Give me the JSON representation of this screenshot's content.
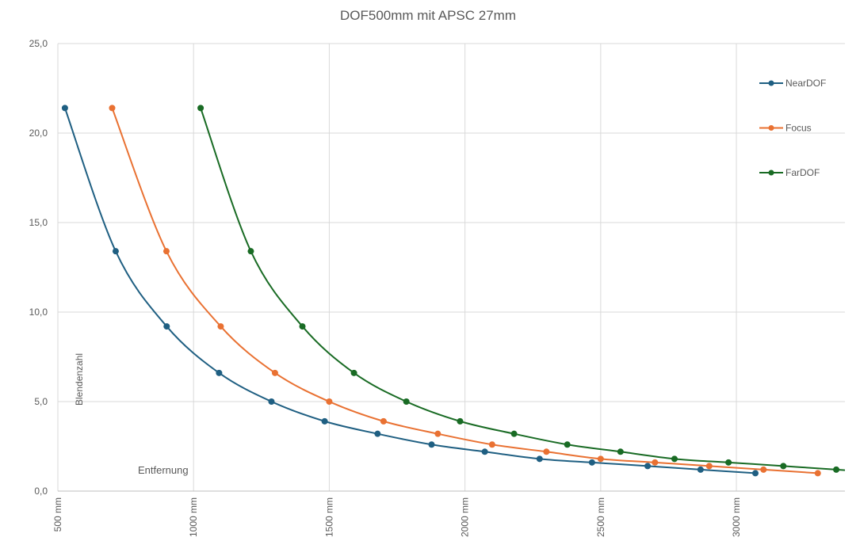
{
  "chart_data": {
    "type": "line",
    "title": "DOF500mm mit APSC 27mm",
    "xlabel": "Entfernung",
    "ylabel": "Blendenzahl",
    "xlim": [
      500,
      3400
    ],
    "ylim": [
      0,
      25
    ],
    "x_ticks": [
      500,
      1000,
      1500,
      2000,
      2500,
      3000
    ],
    "x_tick_labels": [
      "500 mm",
      "1000 mm",
      "1500 mm",
      "2000 mm",
      "2500 mm",
      "3000 mm"
    ],
    "y_ticks": [
      0,
      5,
      10,
      15,
      20,
      25
    ],
    "y_tick_labels": [
      "0,0",
      "5,0",
      "10,0",
      "15,0",
      "20,0",
      "25,0"
    ],
    "grid": "both",
    "legend_position": "right",
    "series": [
      {
        "name": "NearDOF",
        "color": "#1f5f82",
        "x": [
          526,
          713,
          901,
          1094,
          1287,
          1483,
          1678,
          1877,
          2073,
          2275,
          2468,
          2673,
          2868,
          3070
        ],
        "y": [
          21.4,
          13.4,
          9.2,
          6.6,
          5.0,
          3.9,
          3.2,
          2.6,
          2.2,
          1.8,
          1.6,
          1.4,
          1.2,
          1.0
        ]
      },
      {
        "name": "Focus",
        "color": "#e97132",
        "x": [
          700,
          900,
          1100,
          1300,
          1500,
          1700,
          1900,
          2100,
          2300,
          2500,
          2700,
          2900,
          3100,
          3300
        ],
        "y": [
          21.4,
          13.4,
          9.2,
          6.6,
          5.0,
          3.9,
          3.2,
          2.6,
          2.2,
          1.8,
          1.6,
          1.4,
          1.2,
          1.0
        ]
      },
      {
        "name": "FarDOF",
        "color": "#196b24",
        "x": [
          1026,
          1211,
          1401,
          1591,
          1784,
          1982,
          2181,
          2377,
          2573,
          2772,
          2971,
          3173,
          3368
        ],
        "y": [
          21.4,
          13.4,
          9.2,
          6.6,
          5.0,
          3.9,
          3.2,
          2.6,
          2.2,
          1.8,
          1.6,
          1.4,
          1.2
        ]
      }
    ]
  }
}
